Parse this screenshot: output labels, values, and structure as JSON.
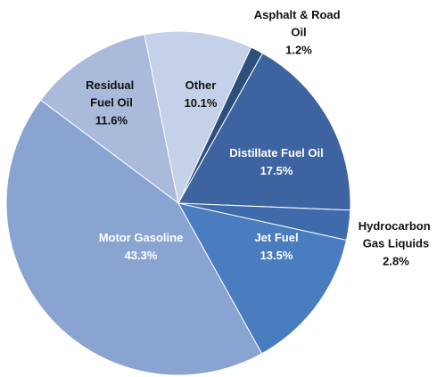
{
  "chart_data": {
    "type": "pie",
    "categories": [
      "Asphalt & Road Oil",
      "Distillate Fuel Oil",
      "Hydrocarbon Gas Liquids",
      "Jet Fuel",
      "Motor Gasoline",
      "Residual Fuel Oil",
      "Other"
    ],
    "values": [
      1.2,
      17.5,
      2.8,
      13.5,
      43.3,
      11.6,
      10.1
    ],
    "value_labels": [
      "1.2%",
      "17.5%",
      "2.8%",
      "13.5%",
      "43.3%",
      "11.6%",
      "10.1%"
    ],
    "colors": [
      "#2c4f7c",
      "#3d64a0",
      "#3f6aac",
      "#4a7cc0",
      "#8aa4d2",
      "#a9bada",
      "#c5d1e8"
    ]
  }
}
